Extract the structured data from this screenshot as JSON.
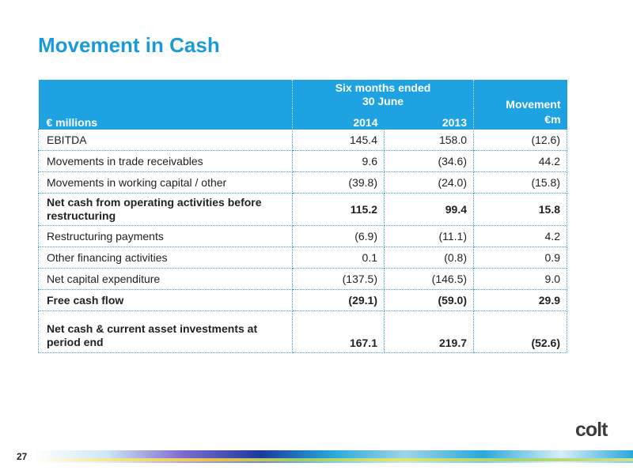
{
  "title": "Movement in Cash",
  "table": {
    "unit_label": "€ millions",
    "period_header_line1": "Six months ended",
    "period_header_line2": "30 June",
    "year1": "2014",
    "year2": "2013",
    "movement_header_line1": "Movement",
    "movement_header_line2": "€m",
    "rows": [
      {
        "label": "EBITDA",
        "y2014": "145.4",
        "y2013": "158.0",
        "movement": "(12.6)"
      },
      {
        "label": "Movements in trade receivables",
        "y2014": "9.6",
        "y2013": "(34.6)",
        "movement": "44.2"
      },
      {
        "label": "Movements in working capital / other",
        "y2014": "(39.8)",
        "y2013": "(24.0)",
        "movement": "(15.8)"
      },
      {
        "label": "Net cash from operating activities before restructuring",
        "y2014": "115.2",
        "y2013": "99.4",
        "movement": "15.8"
      },
      {
        "label": "Restructuring payments",
        "y2014": "(6.9)",
        "y2013": "(11.1)",
        "movement": "4.2"
      },
      {
        "label": "Other financing activities",
        "y2014": "0.1",
        "y2013": "(0.8)",
        "movement": "0.9"
      },
      {
        "label": "Net capital expenditure",
        "y2014": "(137.5)",
        "y2013": "(146.5)",
        "movement": "9.0"
      },
      {
        "label": "Free cash flow",
        "y2014": "(29.1)",
        "y2013": "(59.0)",
        "movement": "29.9"
      },
      {
        "label": "Net cash & current asset investments at period end",
        "y2014": "167.1",
        "y2013": "219.7",
        "movement": "(52.6)"
      }
    ]
  },
  "page_number": "27",
  "logo": "colt",
  "colors": {
    "accent": "#1a9ad6",
    "header_fill": "#1fa2e1",
    "logo": "#3c3c3c"
  }
}
